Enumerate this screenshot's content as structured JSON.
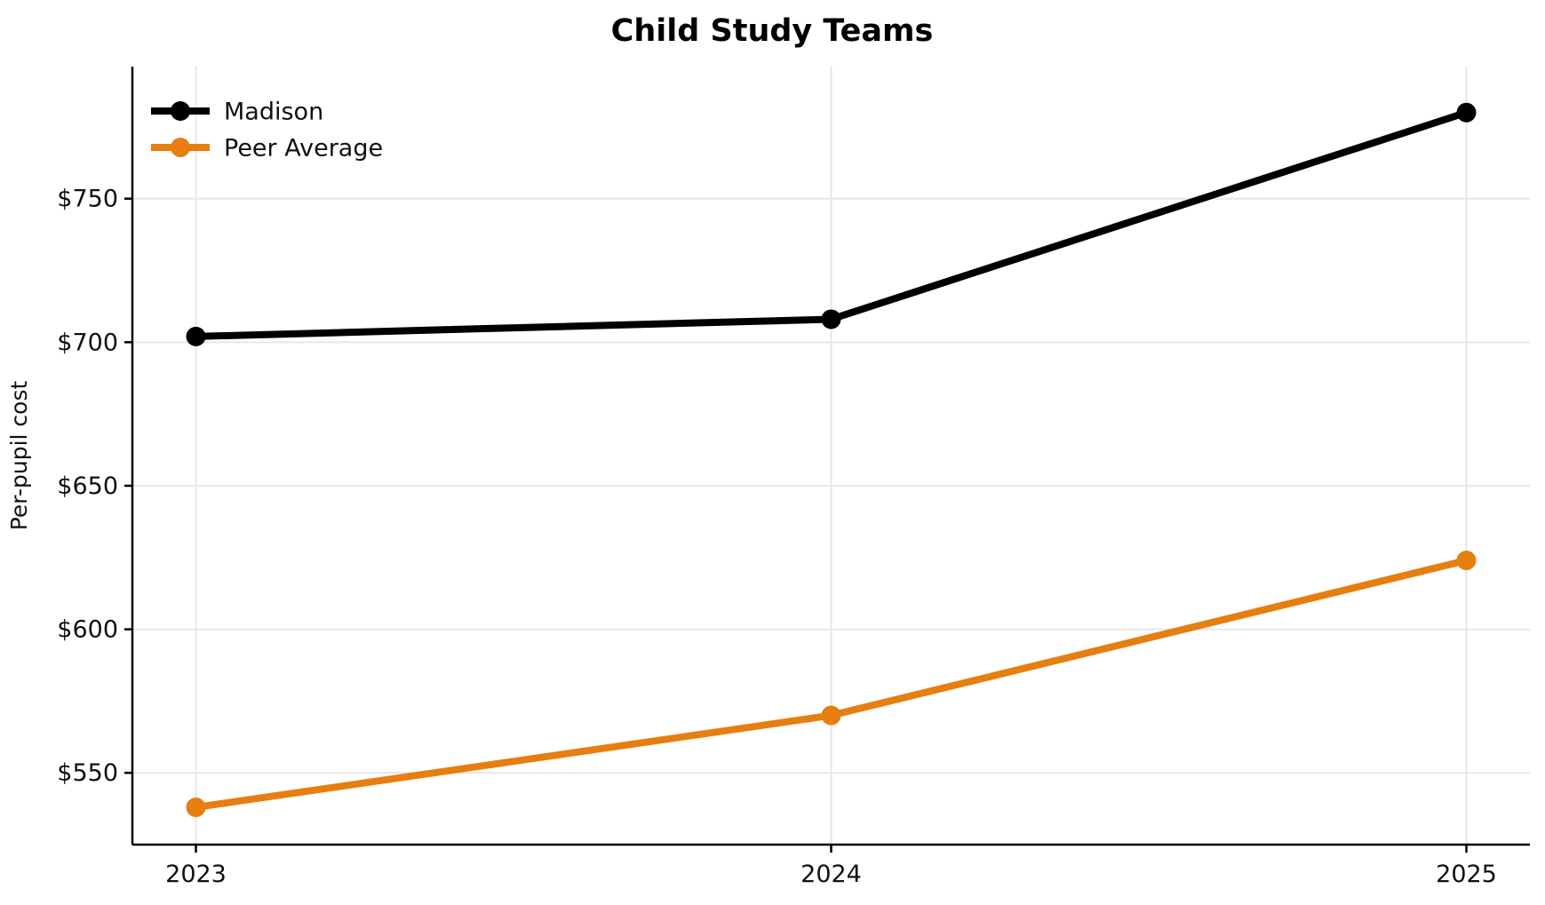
{
  "figure": {
    "background": "#ffffff"
  },
  "chart_data": {
    "type": "line",
    "title": "Child Study Teams",
    "xlabel": "",
    "ylabel": "Per-pupil cost",
    "x": [
      2023,
      2024,
      2025
    ],
    "series": [
      {
        "name": "Madison",
        "color": "#000000",
        "values": [
          702,
          708,
          780
        ]
      },
      {
        "name": "Peer Average",
        "color": "#e67e10",
        "values": [
          538,
          570,
          624
        ]
      }
    ],
    "xticks": [
      {
        "value": 2023,
        "label": "2023"
      },
      {
        "value": 2024,
        "label": "2024"
      },
      {
        "value": 2025,
        "label": "2025"
      }
    ],
    "yticks": [
      {
        "value": 550,
        "label": "$550"
      },
      {
        "value": 600,
        "label": "$600"
      },
      {
        "value": 650,
        "label": "$650"
      },
      {
        "value": 700,
        "label": "$700"
      },
      {
        "value": 750,
        "label": "$750"
      }
    ],
    "xlim": [
      2022.9,
      2025.1
    ],
    "ylim": [
      525,
      796
    ],
    "grid": true,
    "grid_color": "#e7e7e7",
    "axis_color": "#000000",
    "tick_label_color": "#111111",
    "legend_position": "upper-left",
    "marker": "circle",
    "line_width": 8,
    "marker_radius": 11
  }
}
